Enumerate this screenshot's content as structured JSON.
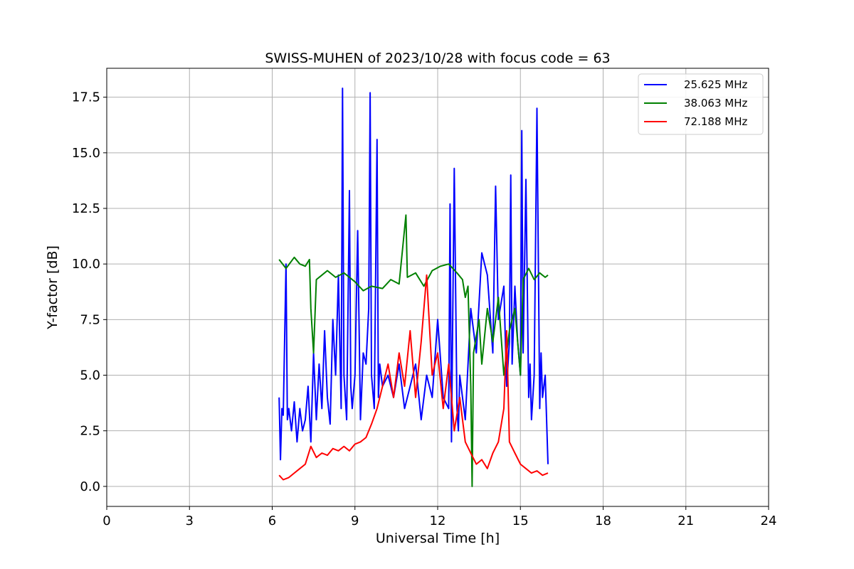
{
  "chart_data": {
    "type": "line",
    "title": "SWISS-MUHEN of 2023/10/28 with focus code = 63",
    "xlabel": "Universal Time [h]",
    "ylabel": "Y-factor [dB]",
    "xlim": [
      0,
      24
    ],
    "ylim": [
      -0.9,
      18.8
    ],
    "xticks": [
      0,
      3,
      6,
      9,
      12,
      15,
      18,
      21,
      24
    ],
    "xtick_labels": [
      "0",
      "3",
      "6",
      "9",
      "12",
      "15",
      "18",
      "21",
      "24"
    ],
    "yticks": [
      0,
      2.5,
      5,
      7.5,
      10,
      12.5,
      15,
      17.5
    ],
    "ytick_labels": [
      "0.0",
      "2.5",
      "5.0",
      "7.5",
      "10.0",
      "12.5",
      "15.0",
      "17.5"
    ],
    "grid": true,
    "legend_position": "top-right",
    "series": [
      {
        "name": "25.625 MHz",
        "color": "#0000ff",
        "x": [
          6.25,
          6.3,
          6.35,
          6.4,
          6.5,
          6.55,
          6.6,
          6.7,
          6.8,
          6.9,
          7.0,
          7.1,
          7.2,
          7.3,
          7.4,
          7.5,
          7.6,
          7.7,
          7.8,
          7.9,
          8.0,
          8.1,
          8.2,
          8.3,
          8.4,
          8.5,
          8.55,
          8.6,
          8.7,
          8.8,
          8.85,
          8.9,
          9.0,
          9.1,
          9.2,
          9.3,
          9.4,
          9.5,
          9.55,
          9.6,
          9.7,
          9.8,
          9.85,
          9.9,
          10.0,
          10.2,
          10.4,
          10.6,
          10.8,
          11.0,
          11.2,
          11.4,
          11.6,
          11.8,
          12.0,
          12.2,
          12.4,
          12.45,
          12.5,
          12.6,
          12.7,
          12.75,
          12.8,
          13.0,
          13.2,
          13.4,
          13.6,
          13.8,
          14.0,
          14.1,
          14.2,
          14.4,
          14.5,
          14.6,
          14.65,
          14.7,
          14.8,
          14.9,
          15.0,
          15.05,
          15.1,
          15.2,
          15.3,
          15.35,
          15.4,
          15.5,
          15.6,
          15.7,
          15.75,
          15.8,
          15.9,
          16.0
        ],
        "y": [
          4.0,
          1.2,
          3.5,
          3.2,
          10.0,
          3.0,
          3.5,
          2.5,
          3.8,
          2.0,
          3.5,
          2.5,
          3.0,
          4.5,
          2.0,
          6.0,
          3.0,
          5.5,
          3.5,
          7.0,
          4.0,
          2.8,
          7.5,
          5.0,
          9.5,
          3.5,
          17.9,
          5.0,
          3.0,
          13.3,
          4.5,
          3.5,
          5.0,
          11.5,
          3.0,
          6.0,
          5.5,
          8.0,
          17.7,
          5.0,
          3.5,
          15.6,
          4.0,
          5.5,
          4.5,
          5.0,
          4.0,
          5.5,
          3.5,
          4.5,
          5.5,
          3.0,
          5.0,
          4.0,
          7.5,
          4.0,
          3.5,
          12.7,
          2.0,
          14.3,
          3.5,
          2.5,
          5.0,
          3.0,
          8.0,
          6.0,
          10.5,
          9.5,
          6.0,
          13.5,
          7.5,
          9.0,
          4.5,
          6.5,
          14.0,
          5.5,
          9.0,
          6.5,
          5.0,
          16.0,
          6.0,
          13.8,
          4.0,
          5.5,
          3.0,
          5.0,
          17.0,
          3.5,
          6.0,
          4.0,
          5.0,
          1.0
        ]
      },
      {
        "name": "38.063 MHz",
        "color": "#008000",
        "x": [
          6.25,
          6.5,
          6.8,
          7.0,
          7.2,
          7.35,
          7.4,
          7.5,
          7.6,
          7.8,
          8.0,
          8.3,
          8.6,
          9.0,
          9.3,
          9.6,
          10.0,
          10.3,
          10.6,
          10.85,
          10.9,
          11.2,
          11.5,
          11.8,
          12.1,
          12.4,
          12.7,
          12.9,
          13.0,
          13.1,
          13.2,
          13.25,
          13.3,
          13.5,
          13.6,
          13.8,
          14.0,
          14.2,
          14.4,
          14.6,
          14.8,
          15.0,
          15.1,
          15.3,
          15.5,
          15.7,
          15.9,
          16.0
        ],
        "y": [
          10.2,
          9.8,
          10.3,
          10.0,
          9.9,
          10.2,
          8.0,
          6.0,
          9.3,
          9.5,
          9.7,
          9.4,
          9.6,
          9.2,
          8.8,
          9.0,
          8.9,
          9.3,
          9.1,
          12.2,
          9.4,
          9.6,
          9.0,
          9.7,
          9.9,
          10.0,
          9.6,
          9.3,
          8.5,
          9.0,
          4.5,
          0.0,
          6.0,
          7.5,
          5.5,
          8.0,
          6.5,
          8.5,
          5.0,
          7.0,
          8.0,
          5.0,
          9.3,
          9.8,
          9.3,
          9.6,
          9.4,
          9.5
        ]
      },
      {
        "name": "72.188 MHz",
        "color": "#ff0000",
        "x": [
          6.25,
          6.4,
          6.6,
          6.8,
          7.0,
          7.2,
          7.4,
          7.6,
          7.8,
          8.0,
          8.2,
          8.4,
          8.6,
          8.8,
          9.0,
          9.2,
          9.4,
          9.6,
          9.8,
          10.0,
          10.2,
          10.4,
          10.6,
          10.8,
          11.0,
          11.2,
          11.4,
          11.6,
          11.8,
          12.0,
          12.2,
          12.4,
          12.6,
          12.8,
          13.0,
          13.2,
          13.4,
          13.6,
          13.8,
          14.0,
          14.2,
          14.4,
          14.5,
          14.6,
          14.8,
          15.0,
          15.2,
          15.4,
          15.6,
          15.8,
          16.0
        ],
        "y": [
          0.5,
          0.3,
          0.4,
          0.6,
          0.8,
          1.0,
          1.8,
          1.3,
          1.5,
          1.4,
          1.7,
          1.6,
          1.8,
          1.6,
          1.9,
          2.0,
          2.2,
          2.8,
          3.5,
          4.5,
          5.5,
          4.0,
          6.0,
          4.5,
          7.0,
          4.0,
          6.5,
          9.5,
          5.0,
          6.0,
          3.5,
          5.5,
          2.5,
          4.0,
          2.0,
          1.5,
          1.0,
          1.2,
          0.8,
          1.5,
          2.0,
          3.5,
          7.0,
          2.0,
          1.5,
          1.0,
          0.8,
          0.6,
          0.7,
          0.5,
          0.6
        ]
      }
    ]
  }
}
